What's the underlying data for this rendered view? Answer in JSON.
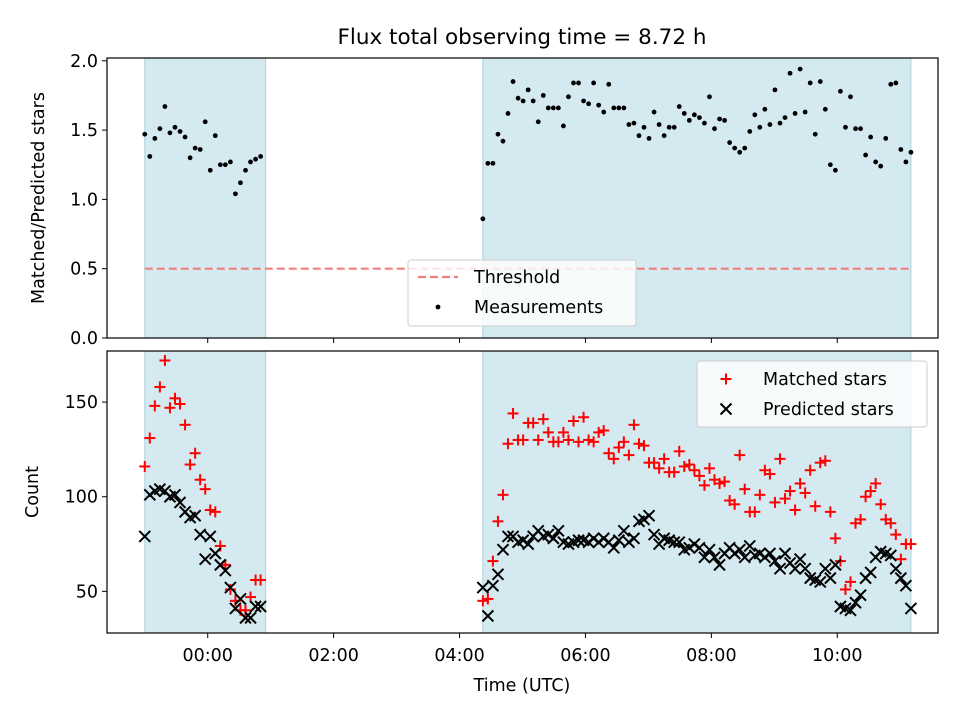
{
  "figure": {
    "title": "Flux total observing time = 8.72 h",
    "xlabel": "Time (UTC)"
  },
  "colors": {
    "shade": "#d4eaf0",
    "shade_edge": "#a9d3df",
    "threshold": "#f08080",
    "measurement": "#000000",
    "matched": "#ff0000",
    "predicted": "#000000"
  },
  "chart_data": [
    {
      "type": "scatter",
      "title": "Flux total observing time = 8.72 h",
      "xlabel": "",
      "ylabel": "Matched/Predicted stars",
      "x_unit": "hours (UTC, relative to 00:00)",
      "xlim": [
        -1.6,
        11.6
      ],
      "ylim": [
        0.0,
        2.02
      ],
      "yticks": [
        0.0,
        0.5,
        1.0,
        1.5,
        2.0
      ],
      "ytick_labels": [
        "0.0",
        "0.5",
        "1.0",
        "1.5",
        "2.0"
      ],
      "xtick_labels": [],
      "shaded_intervals": [
        [
          -1.0,
          0.92
        ],
        [
          4.37,
          11.17
        ]
      ],
      "threshold": {
        "name": "Threshold",
        "y": 0.5,
        "x_range": [
          -1.0,
          11.17
        ],
        "style": "dashed"
      },
      "legend": {
        "placement": "lower-center",
        "entries": [
          "Threshold",
          "Measurements"
        ]
      },
      "series": [
        {
          "name": "Measurements",
          "x": [
            -1.0,
            -0.92,
            -0.84,
            -0.76,
            -0.68,
            -0.6,
            -0.52,
            -0.44,
            -0.36,
            -0.28,
            -0.2,
            -0.12,
            -0.04,
            0.04,
            0.12,
            0.2,
            0.28,
            0.36,
            0.44,
            0.52,
            0.6,
            0.68,
            0.76,
            0.84,
            4.37,
            4.45,
            4.53,
            4.61,
            4.69,
            4.77,
            4.85,
            4.93,
            5.01,
            5.09,
            5.17,
            5.25,
            5.33,
            5.41,
            5.49,
            5.57,
            5.65,
            5.73,
            5.81,
            5.89,
            5.97,
            6.05,
            6.13,
            6.21,
            6.29,
            6.37,
            6.45,
            6.53,
            6.61,
            6.69,
            6.77,
            6.85,
            6.93,
            7.01,
            7.09,
            7.17,
            7.25,
            7.33,
            7.41,
            7.49,
            7.57,
            7.65,
            7.73,
            7.81,
            7.89,
            7.97,
            8.05,
            8.13,
            8.21,
            8.29,
            8.37,
            8.45,
            8.53,
            8.61,
            8.69,
            8.77,
            8.85,
            8.93,
            9.01,
            9.09,
            9.17,
            9.25,
            9.33,
            9.41,
            9.49,
            9.57,
            9.65,
            9.73,
            9.81,
            9.89,
            9.97,
            10.05,
            10.13,
            10.21,
            10.29,
            10.37,
            10.45,
            10.53,
            10.61,
            10.69,
            10.77,
            10.85,
            10.93,
            11.01,
            11.09,
            11.17
          ],
          "y": [
            1.47,
            1.31,
            1.44,
            1.51,
            1.67,
            1.48,
            1.52,
            1.49,
            1.45,
            1.3,
            1.37,
            1.36,
            1.56,
            1.21,
            1.46,
            1.25,
            1.25,
            1.27,
            1.04,
            1.12,
            1.21,
            1.27,
            1.29,
            1.31,
            0.86,
            1.26,
            1.26,
            1.47,
            1.42,
            1.62,
            1.85,
            1.73,
            1.71,
            1.79,
            1.71,
            1.56,
            1.75,
            1.66,
            1.66,
            1.66,
            1.53,
            1.74,
            1.84,
            1.84,
            1.71,
            1.69,
            1.84,
            1.68,
            1.63,
            1.83,
            1.66,
            1.66,
            1.66,
            1.54,
            1.55,
            1.46,
            1.52,
            1.44,
            1.63,
            1.54,
            1.46,
            1.52,
            1.52,
            1.67,
            1.62,
            1.57,
            1.61,
            1.59,
            1.55,
            1.74,
            1.51,
            1.58,
            1.57,
            1.41,
            1.37,
            1.34,
            1.37,
            1.49,
            1.61,
            1.52,
            1.65,
            1.54,
            1.79,
            1.55,
            1.59,
            1.91,
            1.62,
            1.94,
            1.63,
            1.84,
            1.47,
            1.85,
            1.65,
            1.25,
            1.21,
            1.78,
            1.52,
            1.74,
            1.51,
            1.51,
            1.32,
            1.45,
            1.27,
            1.24,
            1.44,
            1.83,
            1.84,
            1.36,
            1.27,
            1.34
          ]
        }
      ]
    },
    {
      "type": "scatter",
      "xlabel": "Time (UTC)",
      "ylabel": "Count",
      "x_unit": "hours (UTC, relative to 00:00)",
      "xlim": [
        -1.6,
        11.6
      ],
      "ylim": [
        28,
        177
      ],
      "xticks": [
        0,
        2,
        4,
        6,
        8,
        10
      ],
      "xtick_labels": [
        "00:00",
        "02:00",
        "04:00",
        "06:00",
        "08:00",
        "10:00"
      ],
      "yticks": [
        50,
        100,
        150
      ],
      "ytick_labels": [
        "50",
        "100",
        "150"
      ],
      "shaded_intervals": [
        [
          -1.0,
          0.92
        ],
        [
          4.37,
          11.17
        ]
      ],
      "legend": {
        "placement": "upper-right",
        "entries": [
          "Matched stars",
          "Predicted stars"
        ]
      },
      "series": [
        {
          "name": "Matched stars",
          "marker": "plus",
          "x": [
            -1.0,
            -0.92,
            -0.84,
            -0.76,
            -0.68,
            -0.6,
            -0.52,
            -0.44,
            -0.36,
            -0.28,
            -0.2,
            -0.12,
            -0.04,
            0.04,
            0.12,
            0.2,
            0.28,
            0.36,
            0.44,
            0.52,
            0.6,
            0.68,
            0.76,
            0.84,
            4.37,
            4.45,
            4.53,
            4.61,
            4.69,
            4.77,
            4.85,
            4.93,
            5.01,
            5.09,
            5.17,
            5.25,
            5.33,
            5.41,
            5.49,
            5.57,
            5.65,
            5.73,
            5.81,
            5.89,
            5.97,
            6.05,
            6.13,
            6.21,
            6.29,
            6.37,
            6.45,
            6.53,
            6.61,
            6.69,
            6.77,
            6.85,
            6.93,
            7.01,
            7.09,
            7.17,
            7.25,
            7.33,
            7.41,
            7.49,
            7.57,
            7.65,
            7.73,
            7.81,
            7.89,
            7.97,
            8.05,
            8.13,
            8.21,
            8.29,
            8.37,
            8.45,
            8.53,
            8.61,
            8.69,
            8.77,
            8.85,
            8.93,
            9.01,
            9.09,
            9.17,
            9.25,
            9.33,
            9.41,
            9.49,
            9.57,
            9.65,
            9.73,
            9.81,
            9.89,
            9.97,
            10.05,
            10.13,
            10.21,
            10.29,
            10.37,
            10.45,
            10.53,
            10.61,
            10.69,
            10.77,
            10.85,
            10.93,
            11.01,
            11.09,
            11.17
          ],
          "y": [
            116,
            131,
            148,
            158,
            172,
            147,
            152,
            149,
            138,
            117,
            123,
            109,
            104,
            93,
            92,
            74,
            64,
            51,
            45,
            40,
            40,
            47,
            56,
            56,
            45,
            46,
            66,
            87,
            101,
            128,
            144,
            130,
            130,
            139,
            139,
            130,
            141,
            134,
            129,
            129,
            134,
            130,
            140,
            129,
            142,
            130,
            129,
            134,
            135,
            123,
            120,
            126,
            129,
            122,
            138,
            128,
            127,
            118,
            118,
            115,
            120,
            113,
            113,
            124,
            116,
            117,
            114,
            111,
            106,
            115,
            109,
            107,
            108,
            98,
            96,
            122,
            104,
            92,
            92,
            101,
            114,
            112,
            97,
            120,
            99,
            103,
            93,
            107,
            102,
            114,
            95,
            118,
            119,
            92,
            78,
            66,
            51,
            55,
            86,
            88,
            100,
            103,
            107,
            96,
            88,
            86,
            80,
            67,
            75,
            75
          ]
        },
        {
          "name": "Predicted stars",
          "marker": "x",
          "x": [
            -1.0,
            -0.92,
            -0.84,
            -0.76,
            -0.68,
            -0.6,
            -0.52,
            -0.44,
            -0.36,
            -0.28,
            -0.2,
            -0.12,
            -0.04,
            0.04,
            0.12,
            0.2,
            0.28,
            0.36,
            0.44,
            0.52,
            0.6,
            0.68,
            0.76,
            0.84,
            4.37,
            4.45,
            4.53,
            4.61,
            4.69,
            4.77,
            4.85,
            4.93,
            5.01,
            5.09,
            5.17,
            5.25,
            5.33,
            5.41,
            5.49,
            5.57,
            5.65,
            5.73,
            5.81,
            5.89,
            5.97,
            6.05,
            6.13,
            6.21,
            6.29,
            6.37,
            6.45,
            6.53,
            6.61,
            6.69,
            6.77,
            6.85,
            6.93,
            7.01,
            7.09,
            7.17,
            7.25,
            7.33,
            7.41,
            7.49,
            7.57,
            7.65,
            7.73,
            7.81,
            7.89,
            7.97,
            8.05,
            8.13,
            8.21,
            8.29,
            8.37,
            8.45,
            8.53,
            8.61,
            8.69,
            8.77,
            8.85,
            8.93,
            9.01,
            9.09,
            9.17,
            9.25,
            9.33,
            9.41,
            9.49,
            9.57,
            9.65,
            9.73,
            9.81,
            9.89,
            9.97,
            10.05,
            10.13,
            10.21,
            10.29,
            10.37,
            10.45,
            10.53,
            10.61,
            10.69,
            10.77,
            10.85,
            10.93,
            11.01,
            11.09,
            11.17
          ],
          "y": [
            79,
            101,
            103,
            104,
            103,
            100,
            101,
            97,
            92,
            89,
            90,
            80,
            67,
            79,
            70,
            64,
            61,
            52,
            41,
            46,
            36,
            36,
            42,
            42,
            52,
            37,
            53,
            59,
            72,
            79,
            79,
            76,
            77,
            75,
            79,
            82,
            79,
            80,
            78,
            82,
            76,
            75,
            76,
            77,
            77,
            76,
            78,
            76,
            78,
            76,
            73,
            77,
            82,
            76,
            78,
            87,
            88,
            90,
            80,
            75,
            78,
            77,
            76,
            76,
            72,
            73,
            75,
            73,
            68,
            72,
            68,
            64,
            70,
            73,
            70,
            72,
            68,
            74,
            69,
            70,
            68,
            70,
            66,
            62,
            70,
            65,
            62,
            67,
            62,
            57,
            56,
            55,
            62,
            57,
            64,
            42,
            41,
            40,
            44,
            48,
            57,
            60,
            68,
            71,
            70,
            69,
            62,
            57,
            53,
            41
          ]
        }
      ]
    }
  ]
}
